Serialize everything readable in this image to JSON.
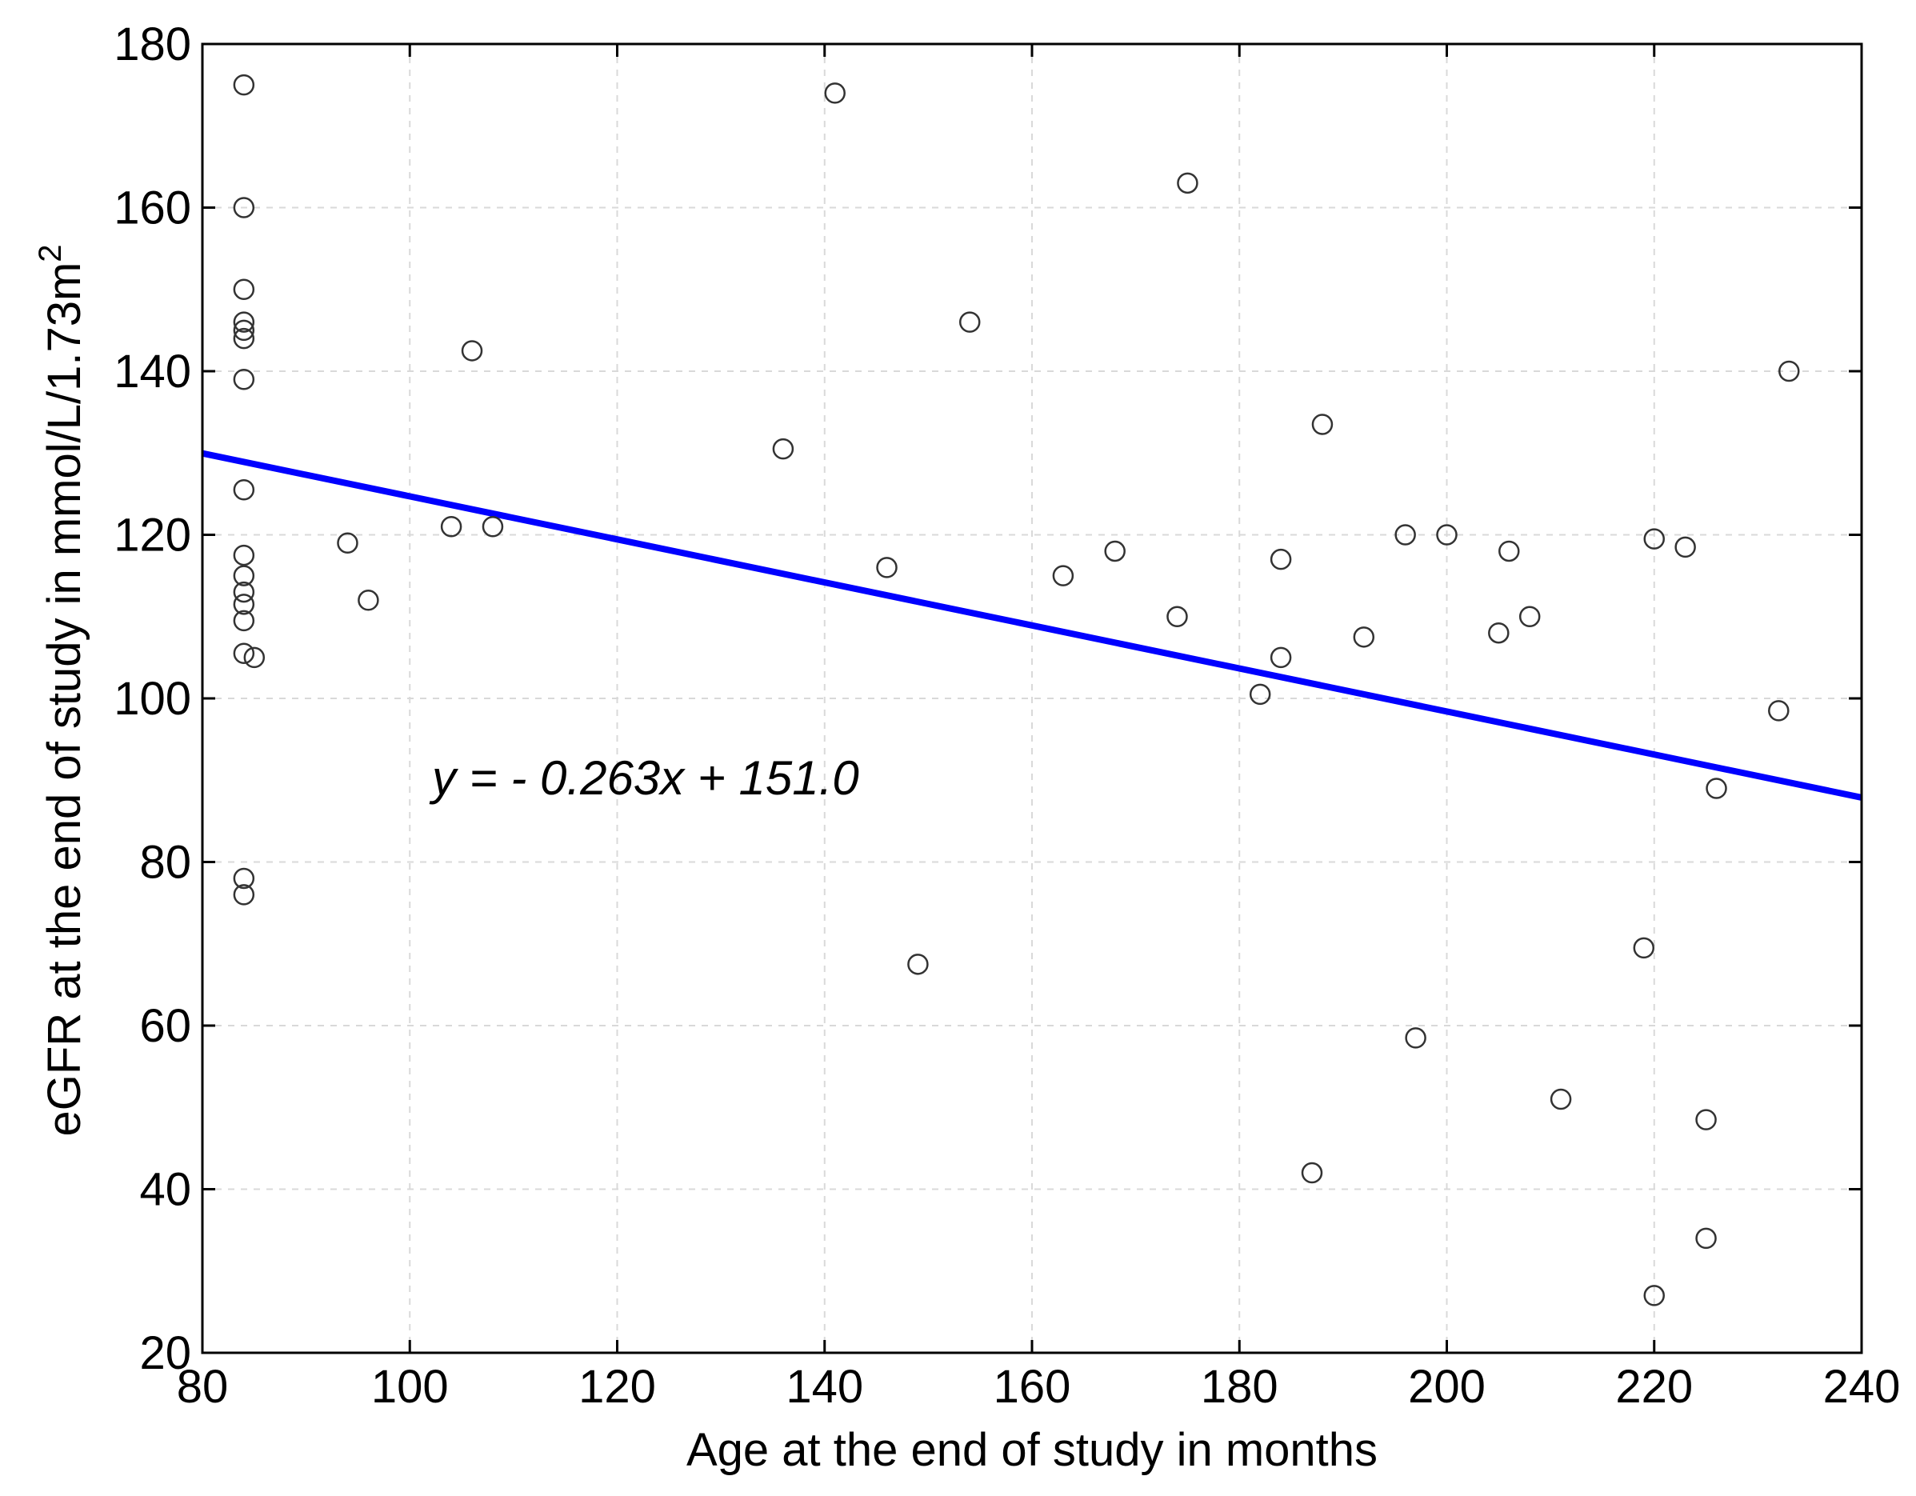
{
  "chart_data": {
    "type": "scatter",
    "xlabel": "Age at the end of study in months",
    "ylabel": "eGFR at the end of study in mmol/L/1.73m",
    "ylabel_superscript": "2",
    "xlim": [
      80,
      240
    ],
    "ylim": [
      20,
      180
    ],
    "xticks": [
      "80",
      "100",
      "120",
      "140",
      "160",
      "180",
      "200",
      "220",
      "240"
    ],
    "yticks": [
      "20",
      "40",
      "60",
      "80",
      "100",
      "120",
      "140",
      "160",
      "180"
    ],
    "grid": true,
    "annotation": "y = - 0.263x + 151.0",
    "fit_line": {
      "slope": -0.263,
      "intercept": 151.0,
      "color": "#0000ff"
    },
    "points": [
      [
        84,
        175
      ],
      [
        84,
        160
      ],
      [
        84,
        150
      ],
      [
        84,
        146
      ],
      [
        84,
        145
      ],
      [
        84,
        144
      ],
      [
        84,
        139
      ],
      [
        84,
        125.5
      ],
      [
        84,
        117.5
      ],
      [
        84,
        115
      ],
      [
        84,
        113
      ],
      [
        84,
        111.5
      ],
      [
        84,
        109.5
      ],
      [
        84,
        105.5
      ],
      [
        85,
        105
      ],
      [
        84,
        78
      ],
      [
        84,
        76
      ],
      [
        94,
        119
      ],
      [
        96,
        112
      ],
      [
        104,
        121
      ],
      [
        106,
        142.5
      ],
      [
        108,
        121
      ],
      [
        136,
        130.5
      ],
      [
        141,
        174
      ],
      [
        146,
        116
      ],
      [
        149,
        67.5
      ],
      [
        154,
        146
      ],
      [
        163,
        115
      ],
      [
        168,
        118
      ],
      [
        174,
        110
      ],
      [
        175,
        163
      ],
      [
        182,
        100.5
      ],
      [
        184,
        117
      ],
      [
        184,
        105
      ],
      [
        187,
        42
      ],
      [
        188,
        133.5
      ],
      [
        192,
        107.5
      ],
      [
        196,
        120
      ],
      [
        197,
        58.5
      ],
      [
        200,
        120
      ],
      [
        205,
        108
      ],
      [
        206,
        118
      ],
      [
        208,
        110
      ],
      [
        211,
        51
      ],
      [
        219,
        69.5
      ],
      [
        220,
        119.5
      ],
      [
        220,
        27
      ],
      [
        223,
        118.5
      ],
      [
        225,
        48.5
      ],
      [
        225,
        34
      ],
      [
        226,
        89
      ],
      [
        232,
        98.5
      ],
      [
        233,
        140
      ]
    ]
  }
}
